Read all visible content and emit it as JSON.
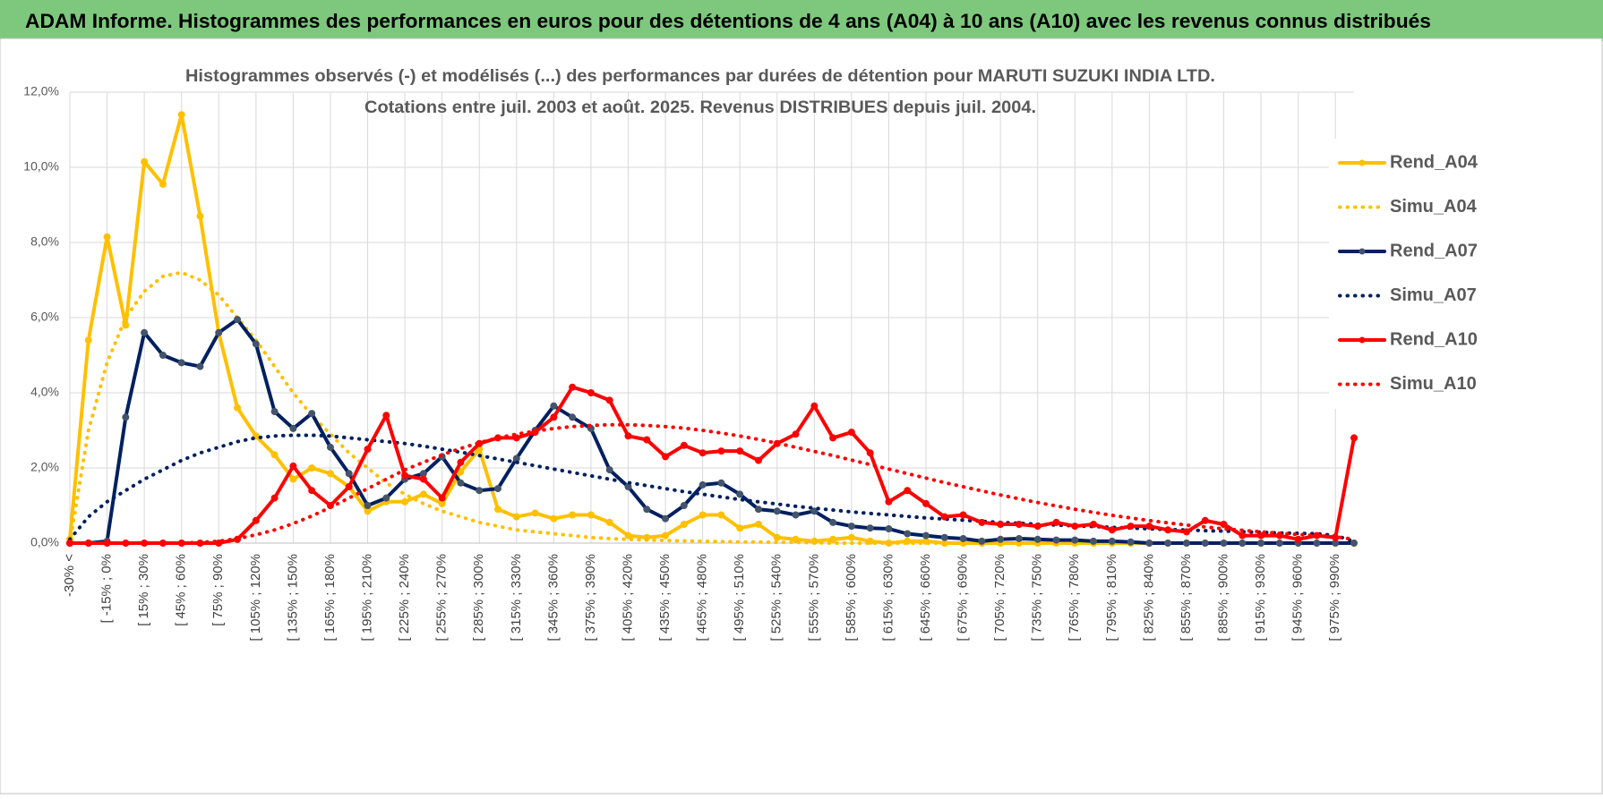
{
  "page_title": "ADAM Informe. Histogrammes des performances en euros pour des détentions de 4 ans (A04) à 10 ans (A10) avec les revenus connus distribués",
  "chart_data": {
    "type": "line",
    "title": "Histogrammes observés (-) et modélisés (...) des performances par durées de détention pour MARUTI SUZUKI INDIA LTD.",
    "subtitle": "Cotations entre juil. 2003 et août. 2025. Revenus DISTRIBUES depuis juil. 2004.",
    "categories": [
      "-30% <",
      null,
      "[ -15% ; 0%",
      null,
      "[ 15% ; 30%",
      null,
      "[ 45% ; 60%",
      null,
      "[ 75% ; 90%",
      null,
      "[ 105% ; 120%",
      null,
      "[ 135% ; 150%",
      null,
      "[ 165% ; 180%",
      null,
      "[ 195% ; 210%",
      null,
      "[ 225% ; 240%",
      null,
      "[ 255% ; 270%",
      null,
      "[ 285% ; 300%",
      null,
      "[ 315% ; 330%",
      null,
      "[ 345% ; 360%",
      null,
      "[ 375% ; 390%",
      null,
      "[ 405% ; 420%",
      null,
      "[ 435% ; 450%",
      null,
      "[ 465% ; 480%",
      null,
      "[ 495% ; 510%",
      null,
      "[ 525% ; 540%",
      null,
      "[ 555% ; 570%",
      null,
      "[ 585% ; 600%",
      null,
      "[ 615% ; 630%",
      null,
      "[ 645% ; 660%",
      null,
      "[ 675% ; 690%",
      null,
      "[ 705% ; 720%",
      null,
      "[ 735% ; 750%",
      null,
      "[ 765% ; 780%",
      null,
      "[ 795% ; 810%",
      null,
      "[ 825% ; 840%",
      null,
      "[ 855% ; 870%",
      null,
      "[ 885% ; 900%",
      null,
      "[ 915% ; 930%",
      null,
      "[ 945% ; 960%",
      null,
      "[ 975% ; 990%",
      null
    ],
    "ylim": [
      0,
      12
    ],
    "yticks": [
      {
        "value": 0,
        "label": "0,0%"
      },
      {
        "value": 2,
        "label": "2,0%"
      },
      {
        "value": 4,
        "label": "4,0%"
      },
      {
        "value": 6,
        "label": "6,0%"
      },
      {
        "value": 8,
        "label": "8,0%"
      },
      {
        "value": 10,
        "label": "10,0%"
      },
      {
        "value": 12,
        "label": "12,0%"
      }
    ],
    "grid": true,
    "legend": "right",
    "series": [
      {
        "name": "Rend_A04",
        "color": "#FFC000",
        "style": "solid",
        "markers": true,
        "marker_color": "#FFC000",
        "values": [
          0.1,
          5.4,
          8.15,
          5.8,
          10.15,
          9.55,
          11.4,
          8.7,
          5.6,
          3.6,
          2.85,
          2.35,
          1.7,
          2.0,
          1.85,
          1.5,
          0.85,
          1.1,
          1.1,
          1.3,
          1.05,
          1.9,
          2.5,
          0.9,
          0.7,
          0.8,
          0.65,
          0.75,
          0.75,
          0.55,
          0.2,
          0.15,
          0.2,
          0.5,
          0.75,
          0.75,
          0.4,
          0.5,
          0.15,
          0.1,
          0.05,
          0.1,
          0.15,
          0.05,
          0.0,
          0.05,
          0.05,
          0.0,
          0.0,
          0.0,
          0.0,
          0.0,
          0.0,
          0.0,
          0.0,
          0.0,
          0.0,
          0.0,
          0.0,
          0.0,
          0.0,
          0.0,
          0.0,
          0.0,
          0.0,
          0.0,
          0.0,
          0.0,
          0.0,
          0.0
        ]
      },
      {
        "name": "Simu_A04",
        "color": "#FFC000",
        "style": "dotted",
        "markers": false,
        "values": [
          0.0,
          3.0,
          4.8,
          6.0,
          6.7,
          7.1,
          7.2,
          7.0,
          6.6,
          6.0,
          5.4,
          4.7,
          4.0,
          3.4,
          2.9,
          2.4,
          2.0,
          1.6,
          1.3,
          1.05,
          0.85,
          0.7,
          0.55,
          0.45,
          0.35,
          0.3,
          0.25,
          0.2,
          0.15,
          0.12,
          0.1,
          0.08,
          0.07,
          0.06,
          0.05,
          0.04,
          0.03,
          0.03,
          0.02,
          0.02,
          0.01,
          0.0,
          0.0,
          0.0,
          0.0,
          0.0,
          0.0,
          0.0,
          0.0,
          0.0,
          0.0,
          0.0,
          0.0,
          0.0,
          0.0,
          0.0,
          0.0,
          0.0,
          0.0,
          0.0,
          0.0,
          0.0,
          0.0,
          0.0,
          0.0,
          0.0,
          0.0,
          0.0,
          0.0,
          0.0
        ]
      },
      {
        "name": "Rend_A07",
        "color": "#002060",
        "style": "solid",
        "markers": true,
        "marker_color": "#44546A",
        "values": [
          0.0,
          0.0,
          0.05,
          3.35,
          5.6,
          5.0,
          4.8,
          4.7,
          5.6,
          5.95,
          5.3,
          3.5,
          3.05,
          3.45,
          2.55,
          1.85,
          1.0,
          1.2,
          1.7,
          1.85,
          2.3,
          1.6,
          1.4,
          1.45,
          2.25,
          3.0,
          3.65,
          3.35,
          3.05,
          1.95,
          1.5,
          0.9,
          0.65,
          1.0,
          1.55,
          1.6,
          1.3,
          0.9,
          0.85,
          0.75,
          0.85,
          0.55,
          0.45,
          0.4,
          0.38,
          0.25,
          0.2,
          0.15,
          0.12,
          0.05,
          0.1,
          0.12,
          0.1,
          0.08,
          0.08,
          0.05,
          0.05,
          0.03,
          0.0,
          0.0,
          0.0,
          0.0,
          0.0,
          0.0,
          0.0,
          0.0,
          0.0,
          0.0,
          0.0,
          0.0
        ]
      },
      {
        "name": "Simu_A07",
        "color": "#002060",
        "style": "dotted",
        "markers": false,
        "values": [
          0.1,
          0.7,
          1.1,
          1.4,
          1.7,
          1.95,
          2.2,
          2.4,
          2.55,
          2.7,
          2.8,
          2.85,
          2.87,
          2.87,
          2.85,
          2.8,
          2.75,
          2.7,
          2.65,
          2.58,
          2.5,
          2.42,
          2.33,
          2.24,
          2.15,
          2.06,
          1.97,
          1.88,
          1.79,
          1.7,
          1.61,
          1.53,
          1.45,
          1.37,
          1.3,
          1.23,
          1.16,
          1.1,
          1.04,
          0.98,
          0.93,
          0.88,
          0.83,
          0.79,
          0.75,
          0.71,
          0.67,
          0.64,
          0.61,
          0.58,
          0.55,
          0.53,
          0.5,
          0.48,
          0.46,
          0.44,
          0.42,
          0.4,
          0.38,
          0.36,
          0.35,
          0.33,
          0.32,
          0.3,
          0.29,
          0.27,
          0.26,
          0.25,
          0.2,
          0.05
        ]
      },
      {
        "name": "Rend_A10",
        "color": "#FF0000",
        "style": "solid",
        "markers": true,
        "marker_color": "#FF0000",
        "values": [
          0.0,
          0.0,
          0.0,
          0.0,
          0.0,
          0.0,
          0.0,
          0.0,
          0.0,
          0.1,
          0.6,
          1.2,
          2.05,
          1.4,
          1.0,
          1.5,
          2.5,
          3.4,
          1.8,
          1.7,
          1.2,
          2.15,
          2.65,
          2.8,
          2.8,
          2.95,
          3.35,
          4.15,
          4.0,
          3.8,
          2.85,
          2.75,
          2.3,
          2.6,
          2.4,
          2.45,
          2.45,
          2.2,
          2.65,
          2.9,
          3.65,
          2.8,
          2.95,
          2.4,
          1.1,
          1.4,
          1.05,
          0.7,
          0.75,
          0.55,
          0.5,
          0.5,
          0.45,
          0.55,
          0.45,
          0.5,
          0.35,
          0.45,
          0.45,
          0.35,
          0.3,
          0.6,
          0.5,
          0.2,
          0.2,
          0.2,
          0.1,
          0.2,
          0.15,
          2.8
        ]
      },
      {
        "name": "Simu_A10",
        "color": "#FF0000",
        "style": "dotted",
        "markers": false,
        "values": [
          0.0,
          0.0,
          0.0,
          0.0,
          0.0,
          0.0,
          0.0,
          0.02,
          0.05,
          0.12,
          0.22,
          0.35,
          0.52,
          0.72,
          0.95,
          1.2,
          1.45,
          1.7,
          1.95,
          2.15,
          2.35,
          2.52,
          2.67,
          2.8,
          2.9,
          2.98,
          3.05,
          3.1,
          3.13,
          3.15,
          3.15,
          3.13,
          3.1,
          3.06,
          3.0,
          2.93,
          2.85,
          2.76,
          2.66,
          2.55,
          2.44,
          2.33,
          2.21,
          2.09,
          1.97,
          1.85,
          1.73,
          1.61,
          1.5,
          1.39,
          1.28,
          1.18,
          1.08,
          0.99,
          0.9,
          0.82,
          0.74,
          0.67,
          0.6,
          0.54,
          0.48,
          0.43,
          0.38,
          0.34,
          0.3,
          0.26,
          0.23,
          0.2,
          0.17,
          0.1
        ]
      }
    ]
  }
}
